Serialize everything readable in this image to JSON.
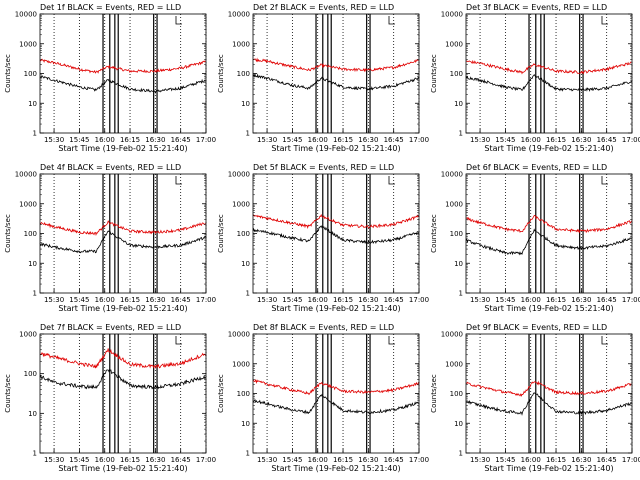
{
  "page": {
    "background": "#ffffff",
    "ink": "#000000"
  },
  "shared": {
    "xlabel": "Start Time (19-Feb-02 15:21:40)",
    "ylabel": "Counts/sec",
    "x_ticks": [
      "15:30",
      "15:45",
      "16:00",
      "16:15",
      "16:30",
      "16:45",
      "17:00"
    ],
    "y_ticks": [
      "1",
      "10",
      "100",
      "1000",
      "10000"
    ],
    "series_colors": {
      "events": "#000000",
      "lld": "#e00000"
    }
  },
  "chart_data": [
    {
      "type": "line",
      "title": "Det 1f BLACK = Events, RED = LLD",
      "x_time_range": [
        "15:21:40",
        "17:00"
      ],
      "x_ticks": [
        "15:30",
        "15:45",
        "16:00",
        "16:15",
        "16:30",
        "16:45",
        "17:00"
      ],
      "ylabel": "Counts/sec",
      "xlabel": "Start Time (19-Feb-02 15:21:40)",
      "yscale": "log",
      "ylim": [
        1,
        10000
      ],
      "vertical_dotted_lines": [
        "15:30",
        "15:45",
        "16:00",
        "16:15",
        "16:30",
        "16:45",
        "17:00"
      ],
      "vertical_solid_lines": [
        "15:59",
        "16:03",
        "16:06",
        "16:08",
        "16:29",
        "16:31"
      ],
      "series": [
        {
          "color": "red",
          "times": [
            "15:21:40",
            "15:30",
            "15:45",
            "15:55",
            "16:02",
            "16:15",
            "16:30",
            "16:45",
            "17:00"
          ],
          "values": [
            280,
            230,
            140,
            110,
            170,
            120,
            120,
            150,
            250
          ]
        },
        {
          "color": "black",
          "times": [
            "15:21:40",
            "15:30",
            "15:45",
            "15:55",
            "16:02",
            "16:15",
            "16:30",
            "16:45",
            "17:00"
          ],
          "values": [
            80,
            60,
            35,
            28,
            60,
            30,
            25,
            32,
            60
          ]
        }
      ]
    },
    {
      "type": "line",
      "title": "Det 2f BLACK = Events, RED = LLD",
      "x_time_range": [
        "15:21:40",
        "17:00"
      ],
      "x_ticks": [
        "15:30",
        "15:45",
        "16:00",
        "16:15",
        "16:30",
        "16:45",
        "17:00"
      ],
      "ylabel": "Counts/sec",
      "xlabel": "Start Time (19-Feb-02 15:21:40)",
      "yscale": "log",
      "ylim": [
        1,
        10000
      ],
      "vertical_dotted_lines": [
        "15:30",
        "15:45",
        "16:00",
        "16:15",
        "16:30",
        "16:45",
        "17:00"
      ],
      "vertical_solid_lines": [
        "15:59",
        "16:03",
        "16:06",
        "16:08",
        "16:29",
        "16:31"
      ],
      "series": [
        {
          "color": "red",
          "times": [
            "15:21:40",
            "15:30",
            "15:45",
            "15:55",
            "16:02",
            "16:15",
            "16:30",
            "16:45",
            "17:00"
          ],
          "values": [
            300,
            260,
            170,
            130,
            190,
            140,
            130,
            160,
            280
          ]
        },
        {
          "color": "black",
          "times": [
            "15:21:40",
            "15:30",
            "15:45",
            "15:55",
            "16:02",
            "16:15",
            "16:30",
            "16:45",
            "17:00"
          ],
          "values": [
            90,
            70,
            40,
            32,
            70,
            35,
            30,
            38,
            70
          ]
        }
      ]
    },
    {
      "type": "line",
      "title": "Det 3f BLACK = Events, RED = LLD",
      "x_time_range": [
        "15:21:40",
        "17:00"
      ],
      "x_ticks": [
        "15:30",
        "15:45",
        "16:00",
        "16:15",
        "16:30",
        "16:45",
        "17:00"
      ],
      "ylabel": "Counts/sec",
      "xlabel": "Start Time (19-Feb-02 15:21:40)",
      "yscale": "log",
      "ylim": [
        1,
        10000
      ],
      "vertical_dotted_lines": [
        "15:30",
        "15:45",
        "16:00",
        "16:15",
        "16:30",
        "16:45",
        "17:00"
      ],
      "vertical_solid_lines": [
        "15:59",
        "16:03",
        "16:06",
        "16:08",
        "16:29",
        "16:31"
      ],
      "series": [
        {
          "color": "red",
          "times": [
            "15:21:40",
            "15:30",
            "15:45",
            "15:55",
            "16:02",
            "16:15",
            "16:30",
            "16:45",
            "17:00"
          ],
          "values": [
            260,
            220,
            140,
            110,
            200,
            120,
            110,
            140,
            230
          ]
        },
        {
          "color": "black",
          "times": [
            "15:21:40",
            "15:30",
            "15:45",
            "15:55",
            "16:02",
            "16:15",
            "16:30",
            "16:45",
            "17:00"
          ],
          "values": [
            75,
            60,
            35,
            28,
            90,
            30,
            28,
            32,
            55
          ]
        }
      ]
    },
    {
      "type": "line",
      "title": "Det 4f BLACK = Events, RED = LLD",
      "x_time_range": [
        "15:21:40",
        "17:00"
      ],
      "x_ticks": [
        "15:30",
        "15:45",
        "16:00",
        "16:15",
        "16:30",
        "16:45",
        "17:00"
      ],
      "ylabel": "Counts/sec",
      "xlabel": "Start Time (19-Feb-02 15:21:40)",
      "yscale": "log",
      "ylim": [
        1,
        10000
      ],
      "vertical_dotted_lines": [
        "15:30",
        "15:45",
        "16:00",
        "16:15",
        "16:30",
        "16:45",
        "17:00"
      ],
      "vertical_solid_lines": [
        "15:59",
        "16:03",
        "16:06",
        "16:08",
        "16:29",
        "16:31"
      ],
      "series": [
        {
          "color": "red",
          "times": [
            "15:21:40",
            "15:30",
            "15:45",
            "15:55",
            "16:02",
            "16:15",
            "16:30",
            "16:45",
            "17:00"
          ],
          "values": [
            230,
            170,
            110,
            100,
            240,
            120,
            110,
            130,
            230
          ]
        },
        {
          "color": "black",
          "times": [
            "15:21:40",
            "15:30",
            "15:45",
            "15:55",
            "16:02",
            "16:15",
            "16:30",
            "16:45",
            "17:00"
          ],
          "values": [
            45,
            35,
            25,
            25,
            120,
            40,
            35,
            40,
            75
          ]
        }
      ]
    },
    {
      "type": "line",
      "title": "Det 5f BLACK = Events, RED = LLD",
      "x_time_range": [
        "15:21:40",
        "17:00"
      ],
      "x_ticks": [
        "15:30",
        "15:45",
        "16:00",
        "16:15",
        "16:30",
        "16:45",
        "17:00"
      ],
      "ylabel": "Counts/sec",
      "xlabel": "Start Time (19-Feb-02 15:21:40)",
      "yscale": "log",
      "ylim": [
        1,
        10000
      ],
      "vertical_dotted_lines": [
        "15:30",
        "15:45",
        "16:00",
        "16:15",
        "16:30",
        "16:45",
        "17:00"
      ],
      "vertical_solid_lines": [
        "15:59",
        "16:03",
        "16:06",
        "16:08",
        "16:29",
        "16:31"
      ],
      "series": [
        {
          "color": "red",
          "times": [
            "15:21:40",
            "15:30",
            "15:45",
            "15:55",
            "16:02",
            "16:15",
            "16:30",
            "16:45",
            "17:00"
          ],
          "values": [
            400,
            330,
            220,
            170,
            400,
            190,
            170,
            200,
            380
          ]
        },
        {
          "color": "black",
          "times": [
            "15:21:40",
            "15:30",
            "15:45",
            "15:55",
            "16:02",
            "16:15",
            "16:30",
            "16:45",
            "17:00"
          ],
          "values": [
            130,
            110,
            70,
            55,
            180,
            60,
            50,
            60,
            110
          ]
        }
      ]
    },
    {
      "type": "line",
      "title": "Det 6f BLACK = Events, RED = LLD",
      "x_time_range": [
        "15:21:40",
        "17:00"
      ],
      "x_ticks": [
        "15:30",
        "15:45",
        "16:00",
        "16:15",
        "16:30",
        "16:45",
        "17:00"
      ],
      "ylabel": "Counts/sec",
      "xlabel": "Start Time (19-Feb-02 15:21:40)",
      "yscale": "log",
      "ylim": [
        1,
        10000
      ],
      "vertical_dotted_lines": [
        "15:30",
        "15:45",
        "16:00",
        "16:15",
        "16:30",
        "16:45",
        "17:00"
      ],
      "vertical_solid_lines": [
        "15:59",
        "16:03",
        "16:06",
        "16:08",
        "16:29",
        "16:31"
      ],
      "series": [
        {
          "color": "red",
          "times": [
            "15:21:40",
            "15:30",
            "15:45",
            "15:55",
            "16:02",
            "16:15",
            "16:30",
            "16:45",
            "17:00"
          ],
          "values": [
            320,
            230,
            140,
            120,
            380,
            140,
            120,
            140,
            260
          ]
        },
        {
          "color": "black",
          "times": [
            "15:21:40",
            "15:30",
            "15:45",
            "15:55",
            "16:02",
            "16:15",
            "16:30",
            "16:45",
            "17:00"
          ],
          "values": [
            60,
            40,
            22,
            22,
            130,
            40,
            32,
            38,
            70
          ]
        }
      ]
    },
    {
      "type": "line",
      "title": "Det 7f BLACK = Events, RED = LLD",
      "x_time_range": [
        "15:21:40",
        "17:00"
      ],
      "x_ticks": [
        "15:30",
        "15:45",
        "16:00",
        "16:15",
        "16:30",
        "16:45",
        "17:00"
      ],
      "ylabel": "Counts/sec",
      "xlabel": "Start Time (19-Feb-02 15:21:40)",
      "yscale": "log",
      "ylim": [
        1,
        1000
      ],
      "y_ticks": [
        "1",
        "10",
        "100",
        "1000"
      ],
      "vertical_dotted_lines": [
        "15:30",
        "15:45",
        "16:00",
        "16:15",
        "16:30",
        "16:45",
        "17:00"
      ],
      "vertical_solid_lines": [
        "15:59",
        "16:03",
        "16:06",
        "16:08",
        "16:29",
        "16:31"
      ],
      "series": [
        {
          "color": "red",
          "times": [
            "15:21:40",
            "15:30",
            "15:45",
            "15:55",
            "16:02",
            "16:15",
            "16:30",
            "16:45",
            "17:00"
          ],
          "values": [
            330,
            260,
            180,
            150,
            400,
            170,
            150,
            180,
            320
          ]
        },
        {
          "color": "black",
          "times": [
            "15:21:40",
            "15:30",
            "15:45",
            "15:55",
            "16:02",
            "16:15",
            "16:30",
            "16:45",
            "17:00"
          ],
          "values": [
            85,
            60,
            48,
            45,
            130,
            50,
            45,
            55,
            85
          ]
        }
      ]
    },
    {
      "type": "line",
      "title": "Det 8f BLACK = Events, RED = LLD",
      "x_time_range": [
        "15:21:40",
        "17:00"
      ],
      "x_ticks": [
        "15:30",
        "15:45",
        "16:00",
        "16:15",
        "16:30",
        "16:45",
        "17:00"
      ],
      "ylabel": "Counts/sec",
      "xlabel": "Start Time (19-Feb-02 15:21:40)",
      "yscale": "log",
      "ylim": [
        1,
        10000
      ],
      "vertical_dotted_lines": [
        "15:30",
        "15:45",
        "16:00",
        "16:15",
        "16:30",
        "16:45",
        "17:00"
      ],
      "vertical_solid_lines": [
        "15:59",
        "16:03",
        "16:06",
        "16:08",
        "16:29",
        "16:31"
      ],
      "series": [
        {
          "color": "red",
          "times": [
            "15:21:40",
            "15:30",
            "15:45",
            "15:55",
            "16:02",
            "16:15",
            "16:30",
            "16:45",
            "17:00"
          ],
          "values": [
            270,
            210,
            130,
            100,
            230,
            120,
            110,
            130,
            220
          ]
        },
        {
          "color": "black",
          "times": [
            "15:21:40",
            "15:30",
            "15:45",
            "15:55",
            "16:02",
            "16:15",
            "16:30",
            "16:45",
            "17:00"
          ],
          "values": [
            60,
            45,
            28,
            23,
            90,
            27,
            23,
            28,
            50
          ]
        }
      ]
    },
    {
      "type": "line",
      "title": "Det 9f BLACK = Events, RED = LLD",
      "x_time_range": [
        "15:21:40",
        "17:00"
      ],
      "x_ticks": [
        "15:30",
        "15:45",
        "16:00",
        "16:15",
        "16:30",
        "16:45",
        "17:00"
      ],
      "ylabel": "Counts/sec",
      "xlabel": "Start Time (19-Feb-02 15:21:40)",
      "yscale": "log",
      "ylim": [
        1,
        10000
      ],
      "vertical_dotted_lines": [
        "15:30",
        "15:45",
        "16:00",
        "16:15",
        "16:30",
        "16:45",
        "17:00"
      ],
      "vertical_solid_lines": [
        "15:59",
        "16:03",
        "16:06",
        "16:08",
        "16:29",
        "16:31"
      ],
      "series": [
        {
          "color": "red",
          "times": [
            "15:21:40",
            "15:30",
            "15:45",
            "15:55",
            "16:02",
            "16:15",
            "16:30",
            "16:45",
            "17:00"
          ],
          "values": [
            220,
            170,
            110,
            90,
            260,
            110,
            100,
            120,
            210
          ]
        },
        {
          "color": "black",
          "times": [
            "15:21:40",
            "15:30",
            "15:45",
            "15:55",
            "16:02",
            "16:15",
            "16:30",
            "16:45",
            "17:00"
          ],
          "values": [
            55,
            40,
            25,
            22,
            110,
            25,
            22,
            27,
            48
          ]
        }
      ]
    }
  ]
}
